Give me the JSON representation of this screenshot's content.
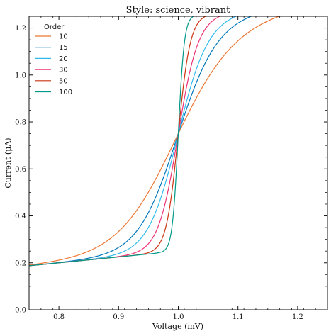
{
  "chart_data": {
    "type": "line",
    "title": "Style: science, vibrant",
    "xlabel": "Voltage (mV)",
    "ylabel": "Current (μA)",
    "xlim": [
      0.75,
      1.25
    ],
    "ylim": [
      0.0,
      1.25
    ],
    "xticks": [
      0.8,
      0.9,
      1.0,
      1.1,
      1.2
    ],
    "xtick_labels": [
      "0.8",
      "0.9",
      "1.0",
      "1.1",
      "1.2"
    ],
    "yticks": [
      0.0,
      0.2,
      0.4,
      0.6,
      0.8,
      1.0,
      1.2
    ],
    "ytick_labels": [
      "0.0",
      "0.2",
      "0.4",
      "0.6",
      "0.8",
      "1.0",
      "1.2"
    ],
    "grid": false,
    "legend": {
      "title": "Order",
      "placement": "top-left"
    },
    "function": "y = x^(2*order) / (1 + x^(2*order)) + x/4",
    "series": [
      {
        "name": "10",
        "order": 10,
        "color": "#EE7733"
      },
      {
        "name": "15",
        "order": 15,
        "color": "#0077BB"
      },
      {
        "name": "20",
        "order": 20,
        "color": "#33BBEE"
      },
      {
        "name": "30",
        "order": 30,
        "color": "#EE3377"
      },
      {
        "name": "50",
        "order": 50,
        "color": "#CC3311"
      },
      {
        "name": "100",
        "order": 100,
        "color": "#009988"
      }
    ]
  }
}
